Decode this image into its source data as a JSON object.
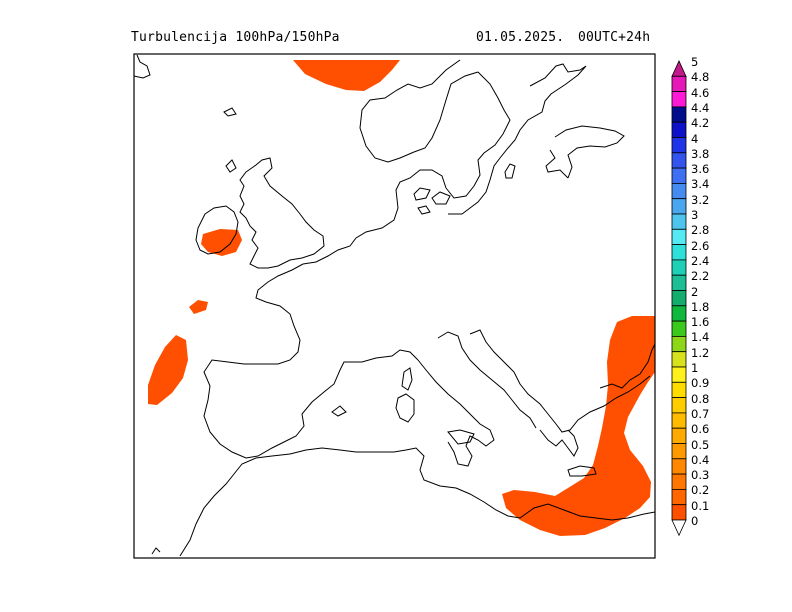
{
  "header": {
    "title": "Turbulencija 100hPa/150hPa",
    "date": "01.05.2025.",
    "run": "00UTC+24h"
  },
  "legend": {
    "levels": [
      {
        "label": "5",
        "color": "#c21a8a"
      },
      {
        "label": "4.8",
        "color": "#e619b8"
      },
      {
        "label": "4.6",
        "color": "#ff1ad5"
      },
      {
        "label": "4.4",
        "color": "#000e8c"
      },
      {
        "label": "4.2",
        "color": "#0d12c8"
      },
      {
        "label": "4",
        "color": "#1f34e6"
      },
      {
        "label": "3.8",
        "color": "#3355ee"
      },
      {
        "label": "3.6",
        "color": "#3f6ff2"
      },
      {
        "label": "3.4",
        "color": "#468bf0"
      },
      {
        "label": "3.2",
        "color": "#4aa6ee"
      },
      {
        "label": "3",
        "color": "#4fc4ee"
      },
      {
        "label": "2.8",
        "color": "#55eaf3"
      },
      {
        "label": "2.6",
        "color": "#2fe0d8"
      },
      {
        "label": "2.4",
        "color": "#1fcfb6"
      },
      {
        "label": "2.2",
        "color": "#1dbd95"
      },
      {
        "label": "2",
        "color": "#15ad6e"
      },
      {
        "label": "1.8",
        "color": "#11b83e"
      },
      {
        "label": "1.6",
        "color": "#3cc91d"
      },
      {
        "label": "1.4",
        "color": "#8ed61a"
      },
      {
        "label": "1.2",
        "color": "#d8e21c"
      },
      {
        "label": "1",
        "color": "#fff21c"
      },
      {
        "label": "0.9",
        "color": "#ffdc00"
      },
      {
        "label": "0.8",
        "color": "#ffcc00"
      },
      {
        "label": "0.7",
        "color": "#ffbb00"
      },
      {
        "label": "0.6",
        "color": "#ffaa00"
      },
      {
        "label": "0.5",
        "color": "#ff9900"
      },
      {
        "label": "0.4",
        "color": "#ff8800"
      },
      {
        "label": "0.3",
        "color": "#ff7700"
      },
      {
        "label": "0.2",
        "color": "#ff6600"
      },
      {
        "label": "0.1",
        "color": "#ff4f00"
      },
      {
        "label": "0",
        "color": "#ffffff"
      }
    ]
  },
  "turbulence_fill_color": "#ff4f00"
}
